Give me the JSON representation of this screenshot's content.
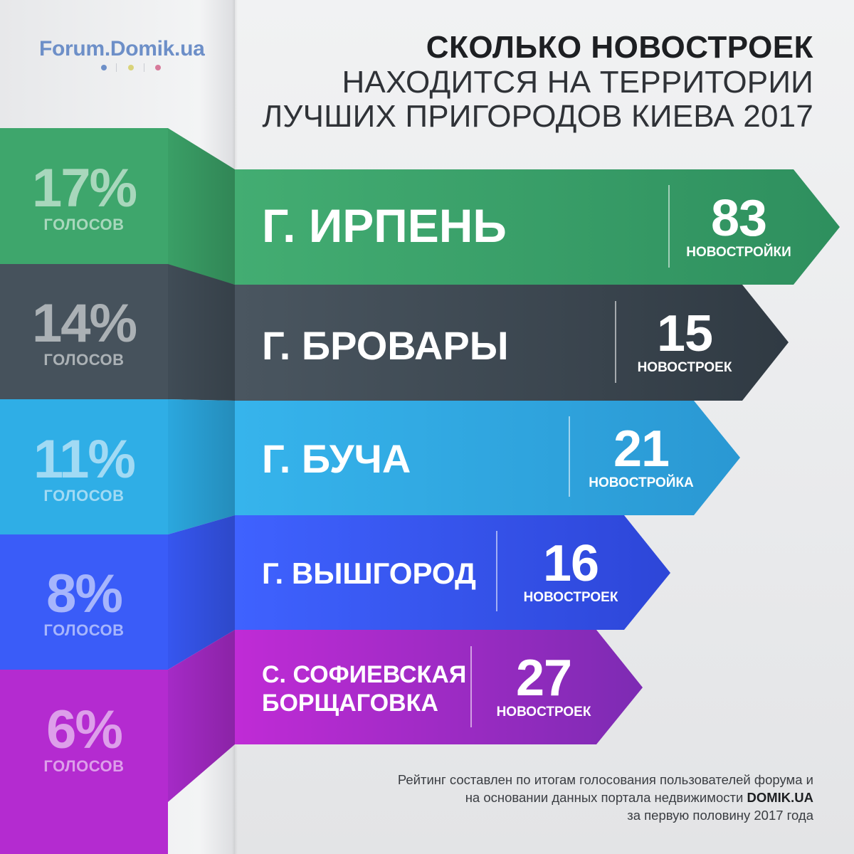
{
  "logo": {
    "text": "Forum.Domik.ua",
    "dots": [
      "#6d8fc8",
      "#d9d37a",
      "#d77a9a"
    ]
  },
  "title": {
    "line1": "СКОЛЬКО НОВОСТРОЕК",
    "line2": "НАХОДИТСЯ НА ТЕРРИТОРИИ",
    "line3": "ЛУЧШИХ ПРИГОРОДОВ КИЕВА 2017"
  },
  "items": [
    {
      "percent": "17%",
      "votes_label": "ГОЛОСОВ",
      "city": "Г. ИРПЕНЬ",
      "count": "83",
      "count_label": "НОВОСТРОЙКИ",
      "color": "#3aa46a"
    },
    {
      "percent": "14%",
      "votes_label": "ГОЛОСОВ",
      "city": "Г. БРОВАРЫ",
      "count": "15",
      "count_label": "НОВОСТРОЕК",
      "color": "#3a454f"
    },
    {
      "percent": "11%",
      "votes_label": "ГОЛОСОВ",
      "city": "Г. БУЧА",
      "count": "21",
      "count_label": "НОВОСТРОЙКА",
      "color": "#2ea8df"
    },
    {
      "percent": "8%",
      "votes_label": "ГОЛОСОВ",
      "city": "Г. ВЫШГОРОД",
      "count": "16",
      "count_label": "НОВОСТРОЕК",
      "color": "#3355ea"
    },
    {
      "percent": "6%",
      "votes_label": "ГОЛОСОВ",
      "city_line1": "С. СОФИЕВСКАЯ",
      "city_line2": "БОРЩАГОВКА",
      "count": "27",
      "count_label": "НОВОСТРОЕК",
      "color": "#9d2dc6"
    }
  ],
  "footer": {
    "line1": "Рейтинг составлен по итогам голосования пользователей форума и",
    "line2_prefix": "на основании данных портала недвижимости",
    "line2_brand": "DOMIK.UA",
    "line3": "за первую половину 2017 года"
  }
}
